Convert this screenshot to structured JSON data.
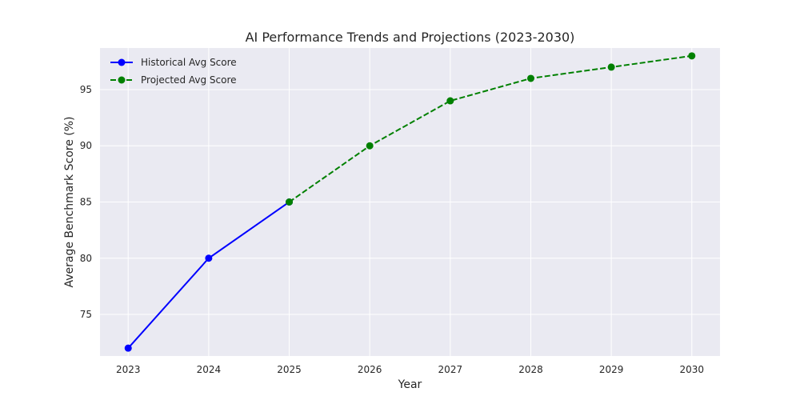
{
  "chart_data": {
    "type": "line",
    "title": "AI Performance Trends and Projections (2023-2030)",
    "xlabel": "Year",
    "ylabel": "Average Benchmark Score (%)",
    "x_ticks": [
      "2023",
      "2024",
      "2025",
      "2026",
      "2027",
      "2028",
      "2029",
      "2030"
    ],
    "y_ticks": [
      "75",
      "80",
      "85",
      "90",
      "95"
    ],
    "xlim": [
      2022.65,
      2030.35
    ],
    "ylim": [
      71.3,
      98.7
    ],
    "grid": true,
    "legend_position": "top-left",
    "background": "#eaeaf2",
    "series": [
      {
        "name": "Historical Avg Score",
        "color": "#0000ff",
        "line_style": "solid",
        "marker": "circle",
        "x": [
          2023,
          2024,
          2025
        ],
        "y": [
          72,
          80,
          85
        ]
      },
      {
        "name": "Projected Avg Score",
        "color": "#008000",
        "line_style": "dashed",
        "marker": "circle",
        "x": [
          2025,
          2026,
          2027,
          2028,
          2029,
          2030
        ],
        "y": [
          85,
          90,
          94,
          96,
          97,
          98
        ]
      }
    ]
  }
}
